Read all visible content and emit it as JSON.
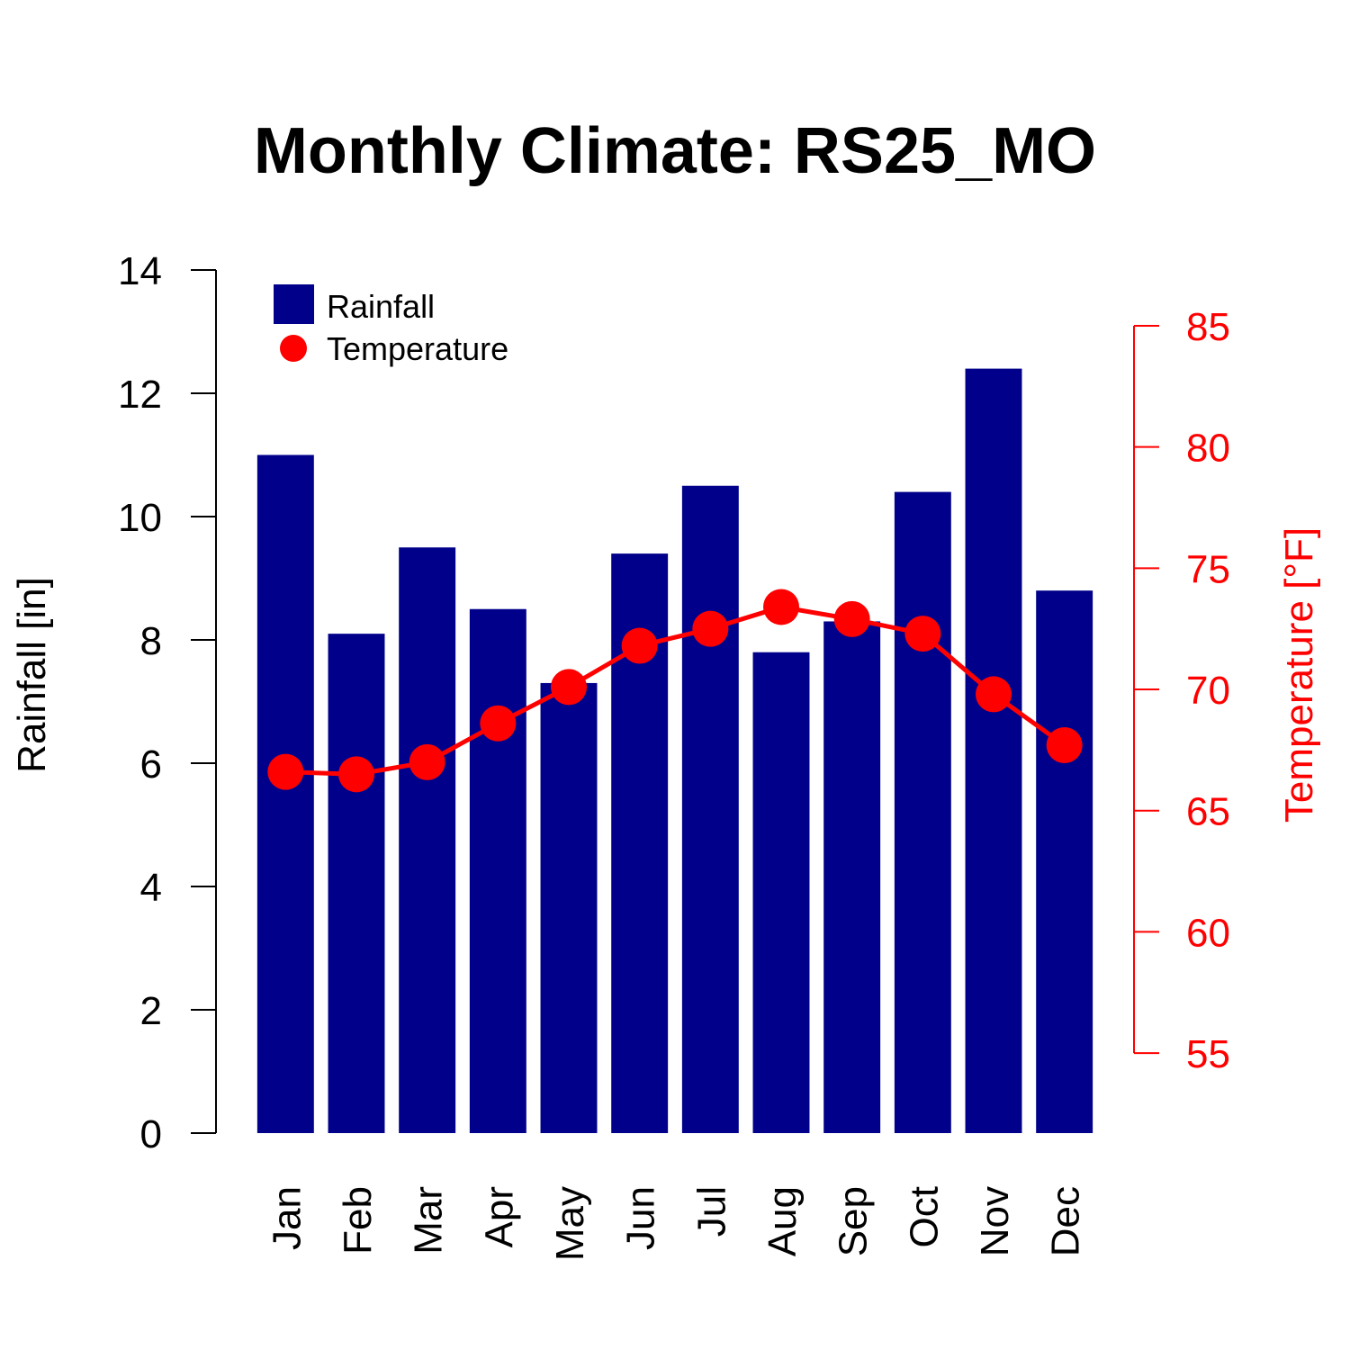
{
  "colors": {
    "bar": "#00008B",
    "temperature": "#FF0000",
    "axis_left": "#000000"
  },
  "chart_data": {
    "type": "bar",
    "title": "Monthly Climate: RS25_MO",
    "categories": [
      "Jan",
      "Feb",
      "Mar",
      "Apr",
      "May",
      "Jun",
      "Jul",
      "Aug",
      "Sep",
      "Oct",
      "Nov",
      "Dec"
    ],
    "series": [
      {
        "name": "Rainfall",
        "type": "bar",
        "axis": "left",
        "values": [
          11.0,
          8.1,
          9.5,
          8.5,
          7.3,
          9.4,
          10.5,
          7.8,
          8.3,
          10.4,
          12.4,
          8.8
        ]
      },
      {
        "name": "Temperature",
        "type": "line",
        "axis": "right",
        "values": [
          66.6,
          66.5,
          67.0,
          68.6,
          70.1,
          71.8,
          72.5,
          73.4,
          72.9,
          72.3,
          69.8,
          67.7
        ]
      }
    ],
    "ylabel": "Rainfall [in]",
    "ylim": [
      0,
      14
    ],
    "yticks": [
      "0",
      "2",
      "4",
      "6",
      "8",
      "10",
      "12",
      "14"
    ],
    "y2label": "Temperature [°F]",
    "y2lim": [
      51.7,
      87.3
    ],
    "y2ticks": [
      "55",
      "60",
      "65",
      "70",
      "75",
      "80",
      "85"
    ],
    "grid": false,
    "legend": "top-left"
  }
}
